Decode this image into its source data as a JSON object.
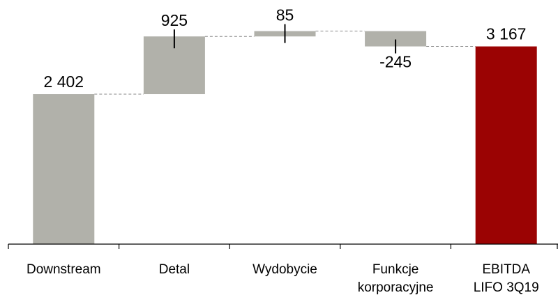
{
  "chart_data": {
    "type": "waterfall",
    "categories": [
      [
        "Downstream"
      ],
      [
        "Detal"
      ],
      [
        "Wydobycie"
      ],
      [
        "Funkcje",
        "korporacyjne"
      ],
      [
        "EBITDA",
        "LIFO 3Q19"
      ]
    ],
    "kinds": [
      "total",
      "delta",
      "delta",
      "delta",
      "total"
    ],
    "values": [
      2402,
      925,
      85,
      -245,
      3167
    ],
    "value_labels": [
      "2 402",
      "925",
      "85",
      "-245",
      "3 167"
    ],
    "ylim": [
      0,
      3500
    ],
    "grid": false,
    "legend": "none",
    "colors": {
      "bar": "#b1b1aa",
      "total": "#9b0303",
      "connector": "#8a8a8a",
      "axis": "#000000"
    }
  }
}
